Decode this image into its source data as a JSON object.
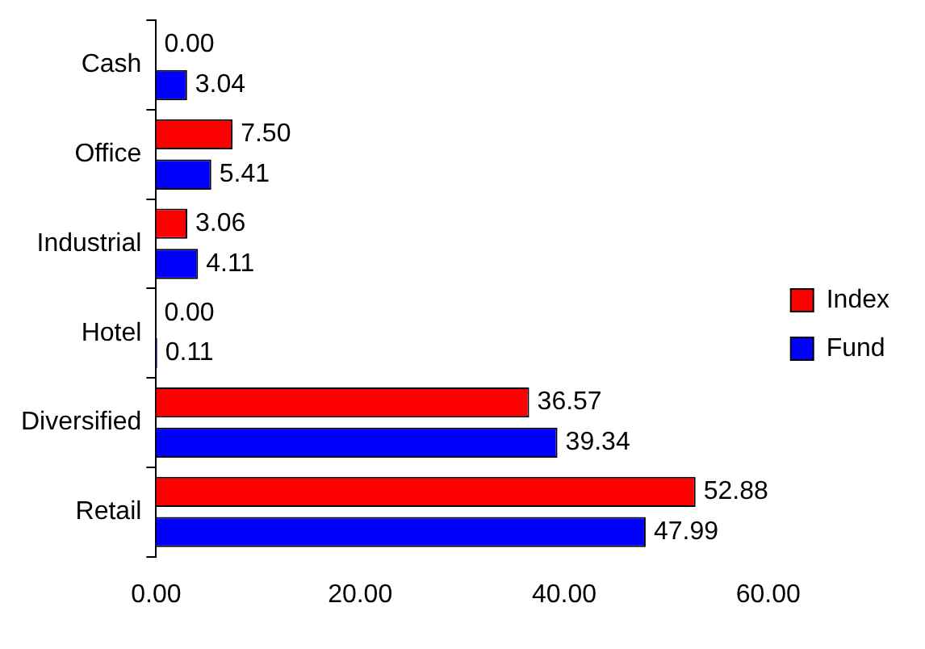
{
  "chart_data": {
    "type": "bar",
    "orientation": "horizontal",
    "categories": [
      "Cash",
      "Office",
      "Industrial",
      "Hotel",
      "Diversified",
      "Retail"
    ],
    "series": [
      {
        "name": "Index",
        "color": "#ff0000",
        "values": [
          0,
          7.5,
          3.06,
          0,
          36.57,
          52.88
        ],
        "value_labels": [
          "0.00",
          "7.50",
          "3.06",
          "0.00",
          "36.57",
          "52.88"
        ]
      },
      {
        "name": "Fund",
        "color": "#0000ff",
        "values": [
          3.04,
          5.41,
          4.11,
          0.11,
          39.34,
          47.99
        ],
        "value_labels": [
          "3.04",
          "5.41",
          "4.11",
          "0.11",
          "39.34",
          "47.99"
        ]
      }
    ],
    "xlim": [
      0,
      60
    ],
    "xticks": [
      {
        "value": 0,
        "label": "0.00"
      },
      {
        "value": 20,
        "label": "20.00"
      },
      {
        "value": 40,
        "label": "40.00"
      },
      {
        "value": 60,
        "label": "60.00"
      }
    ],
    "grid": false,
    "legend": "right"
  }
}
